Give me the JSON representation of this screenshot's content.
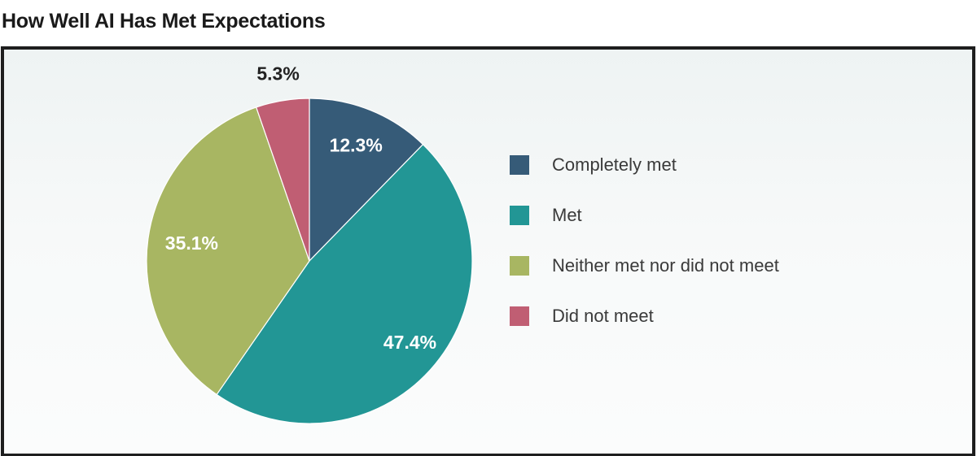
{
  "title": "How Well AI Has Met Expectations",
  "chart_data": {
    "type": "pie",
    "title": "How Well AI Has Met Expectations",
    "start_angle_deg": 0,
    "direction": "clockwise",
    "legend_position": "right",
    "slices": [
      {
        "name": "Completely met",
        "value": 12.3,
        "label": "12.3%",
        "color": "#365b78",
        "label_color": "#ffffff"
      },
      {
        "name": "Met",
        "value": 47.4,
        "label": "47.4%",
        "color": "#229695",
        "label_color": "#ffffff"
      },
      {
        "name": "Neither met nor did not meet",
        "value": 35.1,
        "label": "35.1%",
        "color": "#a8b662",
        "label_color": "#ffffff"
      },
      {
        "name": "Did not meet",
        "value": 5.3,
        "label": "5.3%",
        "color": "#c05e73",
        "label_color": "#222222"
      }
    ]
  }
}
